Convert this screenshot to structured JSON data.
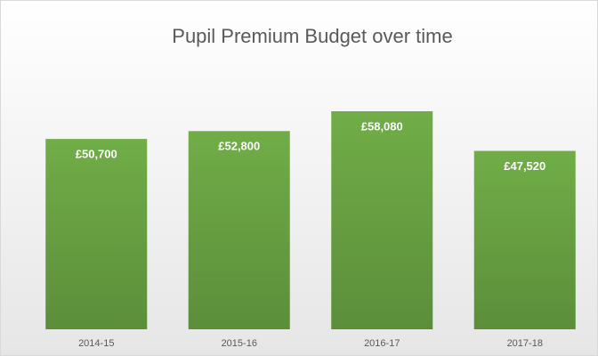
{
  "chart_data": {
    "type": "bar",
    "title": "Pupil Premium Budget over time",
    "categories": [
      "2014-15",
      "2015-16",
      "2016-17",
      "2017-18"
    ],
    "values": [
      50700,
      52800,
      58080,
      47520
    ],
    "value_labels": [
      "£50,700",
      "£52,800",
      "£58,080",
      "£47,520"
    ],
    "color": "#70ad47"
  }
}
